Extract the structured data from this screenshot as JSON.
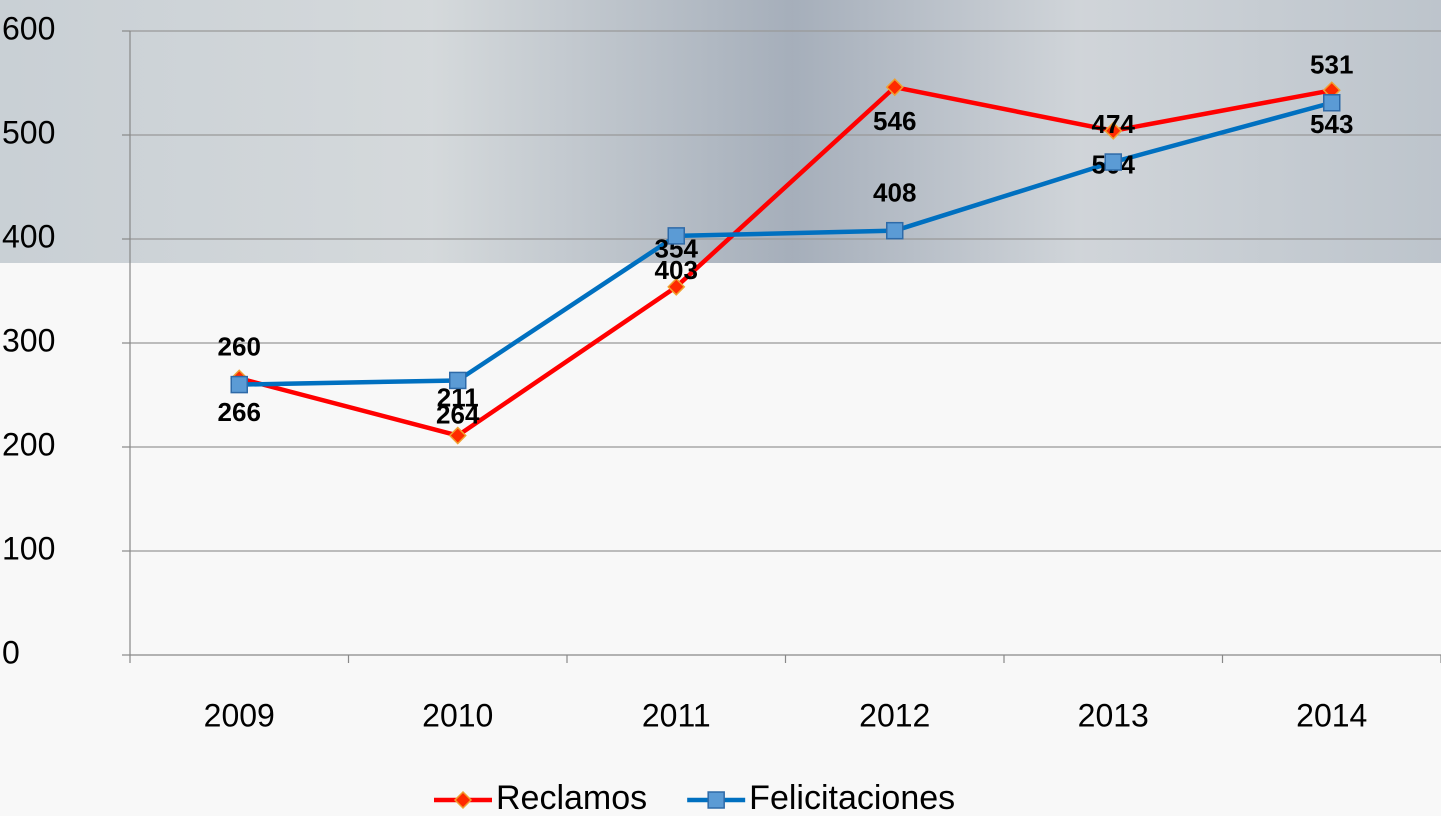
{
  "chart_data": {
    "type": "line",
    "categories": [
      "2009",
      "2010",
      "2011",
      "2012",
      "2013",
      "2014"
    ],
    "series": [
      {
        "name": "Reclamos",
        "color": "#ff0000",
        "marker": "diamond",
        "values": [
          266,
          211,
          354,
          546,
          504,
          543
        ]
      },
      {
        "name": "Felicitaciones",
        "color": "#0070c0",
        "marker": "square",
        "values": [
          260,
          264,
          403,
          408,
          474,
          531
        ]
      }
    ],
    "ylim": [
      0,
      600
    ],
    "yticks": [
      0,
      100,
      200,
      300,
      400,
      500,
      600
    ],
    "grid": true,
    "legend": "bottom"
  }
}
